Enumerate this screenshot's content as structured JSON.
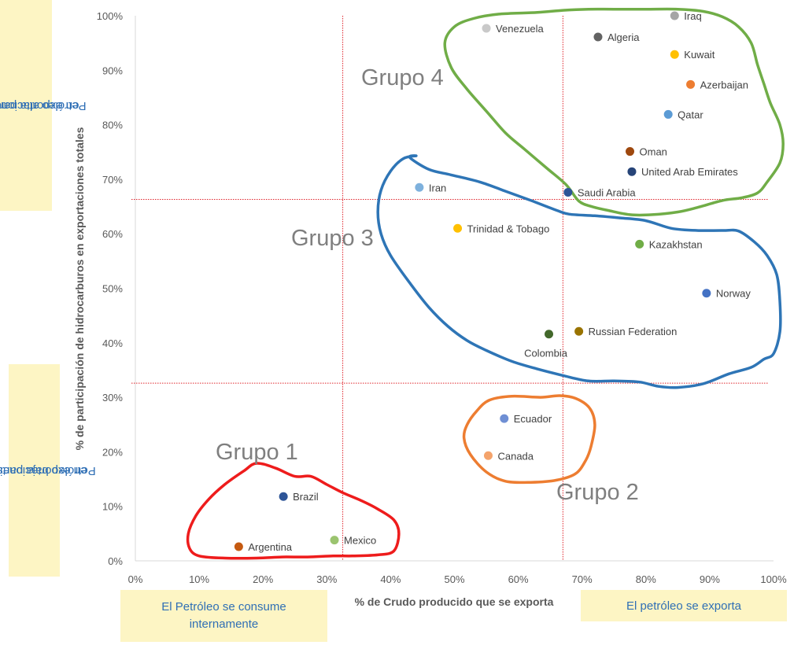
{
  "chart_data": {
    "type": "scatter",
    "xlabel": "% de Crudo producido que se exporta",
    "ylabel": "% de participación de hidrocarburos en exportaciones totales",
    "xlim": [
      0,
      100
    ],
    "ylim": [
      0,
      100
    ],
    "x_ticks": [
      "0%",
      "10%",
      "20%",
      "30%",
      "40%",
      "50%",
      "60%",
      "70%",
      "80%",
      "90%",
      "100%"
    ],
    "y_ticks": [
      "0%",
      "10%",
      "20%",
      "30%",
      "40%",
      "50%",
      "60%",
      "70%",
      "80%",
      "90%",
      "100%"
    ],
    "threshold_lines": {
      "x": [
        32.5,
        67
      ],
      "y": [
        32.6,
        66.3
      ]
    },
    "points": [
      {
        "name": "Iraq",
        "x": 84.5,
        "y": 100,
        "color": "#a5a5a5"
      },
      {
        "name": "Venezuela",
        "x": 55,
        "y": 97.7,
        "color": "#c9c9c9"
      },
      {
        "name": "Algeria",
        "x": 72.5,
        "y": 96.1,
        "color": "#636363"
      },
      {
        "name": "Kuwait",
        "x": 84.5,
        "y": 92.9,
        "color": "#ffc000"
      },
      {
        "name": "Azerbaijan",
        "x": 87,
        "y": 87.4,
        "color": "#ed7d31"
      },
      {
        "name": "Qatar",
        "x": 83.5,
        "y": 81.9,
        "color": "#5b9bd5"
      },
      {
        "name": "Oman",
        "x": 77.5,
        "y": 75.1,
        "color": "#9e480e"
      },
      {
        "name": "United Arab Emirates",
        "x": 77.8,
        "y": 71.4,
        "color": "#264478"
      },
      {
        "name": "Saudi Arabia",
        "x": 67.8,
        "y": 67.6,
        "color": "#2e5597"
      },
      {
        "name": "Iran",
        "x": 44.5,
        "y": 68.5,
        "color": "#7eb1dd"
      },
      {
        "name": "Trinidad & Tobago",
        "x": 50.5,
        "y": 61,
        "color": "#ffc000"
      },
      {
        "name": "Kazakhstan",
        "x": 79,
        "y": 58.1,
        "color": "#70ad47"
      },
      {
        "name": "Norway",
        "x": 89.5,
        "y": 49.1,
        "color": "#4472c4"
      },
      {
        "name": "Russian Federation",
        "x": 69.5,
        "y": 42.1,
        "color": "#997300"
      },
      {
        "name": "Colombia",
        "x": 64.8,
        "y": 41.6,
        "color": "#43682b"
      },
      {
        "name": "Ecuador",
        "x": 57.8,
        "y": 26.1,
        "color": "#6f8fd4"
      },
      {
        "name": "Canada",
        "x": 55.3,
        "y": 19.3,
        "color": "#f4a36b"
      },
      {
        "name": "Brazil",
        "x": 23.2,
        "y": 11.8,
        "color": "#2e5597"
      },
      {
        "name": "Mexico",
        "x": 31.2,
        "y": 3.8,
        "color": "#9bc46f"
      },
      {
        "name": "Argentina",
        "x": 16.2,
        "y": 2.6,
        "color": "#c55a11"
      }
    ],
    "groups": [
      {
        "name": "Grupo 1",
        "color": "#ee1c1c",
        "outline": [
          [
            19,
            17.9
          ],
          [
            22,
            17
          ],
          [
            25,
            15.5
          ],
          [
            27.5,
            15.5
          ],
          [
            30,
            14
          ],
          [
            32.5,
            12.5
          ],
          [
            35.5,
            11
          ],
          [
            38,
            9.5
          ],
          [
            40.5,
            7.5
          ],
          [
            41.3,
            5
          ],
          [
            40.5,
            1.8
          ],
          [
            38,
            1.1
          ],
          [
            34,
            0.9
          ],
          [
            31,
            0.9
          ],
          [
            27,
            0.7
          ],
          [
            23,
            0.7
          ],
          [
            19,
            0.5
          ],
          [
            14,
            0.5
          ],
          [
            10,
            0.9
          ],
          [
            8.5,
            2.3
          ],
          [
            8.3,
            5
          ],
          [
            9.5,
            8.3
          ],
          [
            11.5,
            11.3
          ],
          [
            14,
            14
          ],
          [
            17,
            16.5
          ]
        ]
      },
      {
        "name": "Grupo 2",
        "color": "#ed7d31",
        "outline": [
          [
            59,
            30.2
          ],
          [
            63.5,
            30
          ],
          [
            66.5,
            30.3
          ],
          [
            69,
            29.8
          ],
          [
            71.2,
            28
          ],
          [
            72,
            25
          ],
          [
            71.4,
            21
          ],
          [
            70.6,
            18.5
          ],
          [
            69,
            16
          ],
          [
            66,
            14.8
          ],
          [
            62,
            14.4
          ],
          [
            58,
            14.6
          ],
          [
            55,
            16.3
          ],
          [
            52.5,
            19.5
          ],
          [
            51.5,
            22.5
          ],
          [
            52,
            25
          ],
          [
            53.5,
            27.5
          ],
          [
            55.5,
            29.5
          ]
        ]
      },
      {
        "name": "Grupo 3",
        "color": "#2e75b6",
        "outline": [
          [
            43,
            74
          ],
          [
            46,
            71.8
          ],
          [
            49.5,
            70.8
          ],
          [
            54,
            69.5
          ],
          [
            58,
            67.8
          ],
          [
            62,
            66.1
          ],
          [
            66,
            64.3
          ],
          [
            68,
            63.6
          ],
          [
            72,
            63.3
          ],
          [
            76,
            62.9
          ],
          [
            80,
            62.4
          ],
          [
            84,
            61
          ],
          [
            88,
            60.6
          ],
          [
            92,
            60.6
          ],
          [
            94.5,
            60.5
          ],
          [
            97,
            58.5
          ],
          [
            99,
            56
          ],
          [
            100.5,
            52.5
          ],
          [
            101,
            47.5
          ],
          [
            101,
            42
          ],
          [
            100,
            38
          ],
          [
            98.5,
            37
          ],
          [
            96.5,
            35.5
          ],
          [
            93,
            34.3
          ],
          [
            89,
            32.5
          ],
          [
            85,
            31.8
          ],
          [
            82,
            32
          ],
          [
            79,
            32.8
          ],
          [
            75,
            33
          ],
          [
            71,
            33
          ],
          [
            67,
            34
          ],
          [
            63,
            35.2
          ],
          [
            59,
            36.6
          ],
          [
            55,
            38.6
          ],
          [
            52,
            40.4
          ],
          [
            49,
            43
          ],
          [
            46,
            46.5
          ],
          [
            43,
            51
          ],
          [
            40,
            56
          ],
          [
            38.5,
            60
          ],
          [
            38,
            64
          ],
          [
            38.5,
            68
          ],
          [
            40,
            71.5
          ],
          [
            42,
            73.8
          ],
          [
            44,
            74.3
          ]
        ]
      },
      {
        "name": "Grupo 4",
        "color": "#70ad47",
        "outline": [
          [
            57,
            100.3
          ],
          [
            63,
            100.6
          ],
          [
            67,
            101
          ],
          [
            71,
            101.2
          ],
          [
            75,
            101.2
          ],
          [
            80,
            101.2
          ],
          [
            85,
            101.2
          ],
          [
            89,
            100.8
          ],
          [
            92,
            99.8
          ],
          [
            94.5,
            98
          ],
          [
            96.5,
            95
          ],
          [
            97.5,
            91
          ],
          [
            98.5,
            87.5
          ],
          [
            99.5,
            84
          ],
          [
            101,
            80
          ],
          [
            101.5,
            76.5
          ],
          [
            101,
            73
          ],
          [
            99,
            69.5
          ],
          [
            97.5,
            67.5
          ],
          [
            95,
            66.6
          ],
          [
            92,
            66.1
          ],
          [
            88,
            64.8
          ],
          [
            85,
            64
          ],
          [
            81,
            63.5
          ],
          [
            77.5,
            63.5
          ],
          [
            74,
            64.3
          ],
          [
            71.5,
            65
          ],
          [
            69.5,
            66
          ],
          [
            67.5,
            69
          ],
          [
            64.5,
            72
          ],
          [
            61,
            75.5
          ],
          [
            58,
            78.5
          ],
          [
            55,
            82.5
          ],
          [
            52,
            86.5
          ],
          [
            49.5,
            90.5
          ],
          [
            48.5,
            95
          ],
          [
            50,
            98
          ],
          [
            53,
            99.5
          ]
        ]
      }
    ]
  },
  "axis": {
    "xlabel": "% de Crudo producido que se exporta",
    "ylabel": "% de participación de hidrocarburos en exportaciones totales"
  },
  "group_labels": [
    "Grupo 1",
    "Grupo 2",
    "Grupo 3",
    "Grupo 4"
  ],
  "notes": {
    "top_left_line1": "Petróleo alta participación",
    "top_left_line2": "en exportaciones",
    "bottom_left_line1": "Petróleo baja participación",
    "bottom_left_line2": "en exportaciones",
    "bottom_center_line1": "El Petróleo se consume",
    "bottom_center_line2": "internamente",
    "bottom_right": "El petróleo se exporta"
  },
  "colors": {
    "threshold_line": "#e0262d",
    "axis_line": "#d9d9d9",
    "note_background": "#fdf5c4",
    "note_text": "#2f6fb5"
  }
}
